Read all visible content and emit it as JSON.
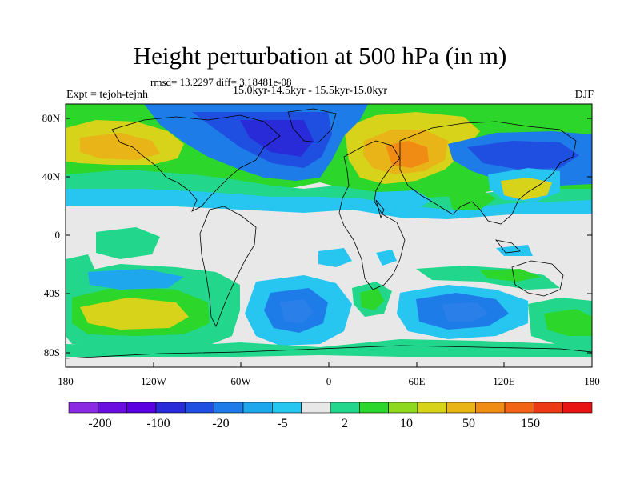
{
  "title": "Height perturbation at 500 hPa (in m)",
  "stats_line": "rmsd= 13.2297 diff= 3.18481e-08",
  "period_line": "15.0kyr-14.5kyr - 15.5kyr-15.0kyr",
  "experiment_label": "Expt = tejoh-tejnh",
  "season_label": "DJF",
  "map": {
    "projection": "cylindrical equidistant",
    "lon_range": [
      -180,
      180
    ],
    "lat_range": [
      -90,
      90
    ],
    "lat_tick_labels": [
      "80N",
      "40N",
      "0",
      "40S",
      "80S"
    ],
    "lon_tick_labels": [
      "180",
      "120W",
      "60W",
      "0",
      "60E",
      "120E",
      "180"
    ]
  },
  "colorbar": {
    "colors": [
      "#8a2be2",
      "#6a0ddf",
      "#5a00e0",
      "#2a2bd8",
      "#1f4fe0",
      "#1e7ce8",
      "#1fa7ee",
      "#26c6f0",
      "#e8e8e8",
      "#22d68c",
      "#2cd62a",
      "#8ed81f",
      "#d6d31a",
      "#e8b417",
      "#f08c14",
      "#f06414",
      "#ec3a14",
      "#e81414"
    ],
    "tick_labels": [
      "-200",
      "-100",
      "-20",
      "-5",
      "2",
      "10",
      "50",
      "150"
    ]
  },
  "palette": {
    "neutral": "#e8e8e8",
    "deep_negative": "#1f3fd8",
    "negative": "#2b7fe8",
    "weak_negative": "#26c6f0",
    "weak_positive": "#22d68c",
    "positive": "#2cd62a",
    "strong_positive": "#d6c81a",
    "very_strong_positive": "#ec9a1a"
  }
}
